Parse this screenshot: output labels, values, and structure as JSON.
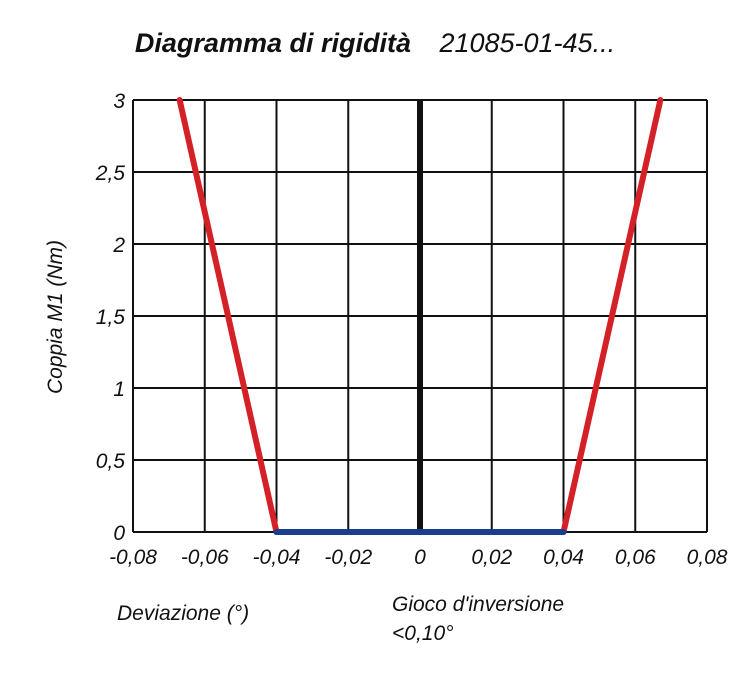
{
  "title": "Diagramma di rigidità",
  "code": "21085-01-45...",
  "notes": {
    "deviation": "Deviazione (°)",
    "backlash_line1": "Gioco d'inversione",
    "backlash_line2": "<0,10°"
  },
  "colors": {
    "stiffness": "#d42027",
    "backlash": "#1a3f8c",
    "zero_axis": "#111111",
    "grid": "#111111"
  },
  "chart_data": {
    "type": "line",
    "title": "",
    "xlabel": "",
    "ylabel": "Coppia M1 (Nm)",
    "xlim": [
      -0.08,
      0.08
    ],
    "ylim": [
      0,
      3
    ],
    "grid": true,
    "x_ticks": [
      -0.08,
      -0.06,
      -0.04,
      -0.02,
      0,
      0.02,
      0.04,
      0.06,
      0.08
    ],
    "x_tick_labels": [
      "-0,08",
      "-0,06",
      "-0,04",
      "-0,02",
      "0",
      "0,02",
      "0,04",
      "0,06",
      "0,08"
    ],
    "y_ticks": [
      0,
      0.5,
      1,
      1.5,
      2,
      2.5,
      3
    ],
    "y_tick_labels": [
      "0",
      "0,5",
      "1",
      "1,5",
      "2",
      "2,5",
      "3"
    ],
    "series": [
      {
        "color": "#d42027",
        "points": [
          [
            -0.04,
            0
          ],
          [
            -0.067,
            3
          ]
        ]
      },
      {
        "color": "#d42027",
        "points": [
          [
            0.04,
            0
          ],
          [
            0.067,
            3
          ]
        ]
      },
      {
        "color": "#1a3f8c",
        "points": [
          [
            -0.04,
            0
          ],
          [
            0.04,
            0
          ]
        ]
      }
    ]
  }
}
